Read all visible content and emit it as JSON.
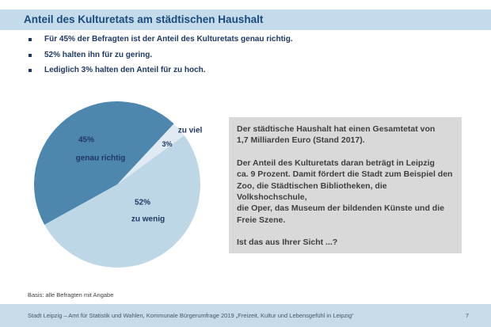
{
  "slide": {
    "title": "Anteil des Kulturetats am städtischen Haushalt",
    "bullets": [
      "Für 45% der Befragten ist der Anteil des Kulturetats genau richtig.",
      "52% halten ihn für zu gering.",
      "Lediglich 3% halten den Anteil für zu hoch."
    ],
    "info_box": {
      "paragraphs": [
        "Der städtische Haushalt hat einen Gesamtetat von\n1,7 Milliarden Euro (Stand 2017).",
        "Der Anteil des Kulturetats daran beträgt in Leipzig\nca. 9 Prozent. Damit fördert die Stadt zum Beispiel den\nZoo, die Städtischen Bibliotheken, die Volkshochschule,\ndie Oper, das Museum der bildenden Künste und die\nFreie Szene.",
        "Ist das aus Ihrer Sicht ...?"
      ]
    },
    "basis_note": "Basis: alle Befragten mit Angabe",
    "footer": {
      "source": "Stadt Leipzig – Amt für Statistik und Wahlen, Kommunale Bürgerumfrage 2019 „Freizeit, Kultur und Lebensgefühl in Leipzig“",
      "page_number": "7"
    }
  },
  "chart_data": {
    "type": "pie",
    "title": "",
    "start_angle_deg": 241,
    "direction": "clockwise",
    "legend_position": "none",
    "slices": [
      {
        "label": "genau richtig",
        "value_pct": 45,
        "display_value": "45%",
        "color": "#4d87ad"
      },
      {
        "label": "zu viel",
        "value_pct": 3,
        "display_value": "3%",
        "color": "#dfeaf2"
      },
      {
        "label": "zu wenig",
        "value_pct": 52,
        "display_value": "52%",
        "color": "#bed7e6"
      }
    ]
  },
  "colors": {
    "title_bar_bg": "#c4dbeb",
    "footer_bar_bg": "#c8dbe9",
    "heading_text": "#1b4a7c",
    "bullet_text": "#1f3864",
    "info_box_bg": "#d9d9d9",
    "info_box_text": "#3f3f3f"
  }
}
